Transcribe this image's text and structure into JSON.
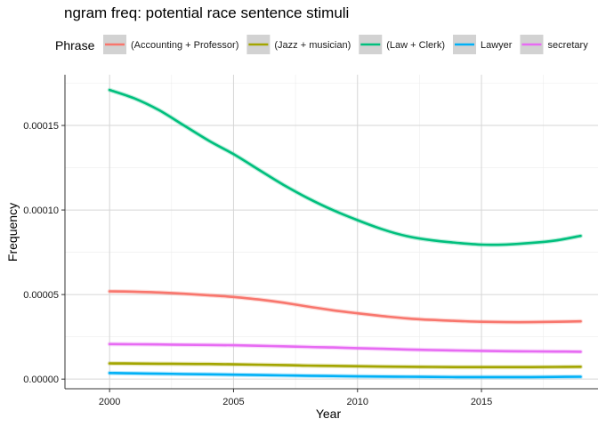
{
  "chart_data": {
    "type": "line",
    "title": "ngram freq: potential race sentence stimuli",
    "xlabel": "Year",
    "ylabel": "Frequency",
    "legend_title": "Phrase",
    "legend_position": "top",
    "grid": true,
    "xlim": [
      1998.2,
      2019.7
    ],
    "ylim": [
      -5.7e-06,
      0.00018
    ],
    "x_ticks": [
      2000,
      2005,
      2010,
      2015
    ],
    "x_tick_labels": [
      "2000",
      "2005",
      "2010",
      "2015"
    ],
    "y_ticks": [
      0,
      5e-05,
      0.0001,
      0.00015
    ],
    "y_tick_labels": [
      "0.00000",
      "0.00005",
      "0.00010",
      "0.00015"
    ],
    "x": [
      2000,
      2001,
      2002,
      2003,
      2004,
      2005,
      2006,
      2007,
      2008,
      2009,
      2010,
      2011,
      2012,
      2013,
      2014,
      2015,
      2016,
      2017,
      2018,
      2019
    ],
    "series": [
      {
        "name": "(Accounting + Professor)",
        "color": "#F8766D",
        "values": [
          5.19e-05,
          5.17e-05,
          5.12e-05,
          5.05e-05,
          4.96e-05,
          4.86e-05,
          4.71e-05,
          4.52e-05,
          4.29e-05,
          4.07e-05,
          3.89e-05,
          3.73e-05,
          3.59e-05,
          3.5e-05,
          3.44e-05,
          3.39e-05,
          3.37e-05,
          3.37e-05,
          3.39e-05,
          3.42e-05
        ]
      },
      {
        "name": "(Jazz + musician)",
        "color": "#A3A500",
        "values": [
          9.3e-06,
          9.2e-06,
          9.1e-06,
          9e-06,
          8.9e-06,
          8.7e-06,
          8.5e-06,
          8.3e-06,
          8e-06,
          7.8e-06,
          7.6e-06,
          7.4e-06,
          7.3e-06,
          7.2e-06,
          7.1e-06,
          7.1e-06,
          7.1e-06,
          7.1e-06,
          7.2e-06,
          7.3e-06
        ]
      },
      {
        "name": "(Law + Clerk)",
        "color": "#00BF7D",
        "values": [
          0.000171,
          0.000166,
          0.000159,
          0.00015,
          0.000141,
          0.000133,
          0.000124,
          0.000115,
          0.000107,
          0.0001,
          9.4e-05,
          8.86e-05,
          8.45e-05,
          8.21e-05,
          8.06e-05,
          7.95e-05,
          7.96e-05,
          8.05e-05,
          8.2e-05,
          8.47e-05
        ]
      },
      {
        "name": "Lawyer",
        "color": "#00B0F6",
        "values": [
          3.6e-06,
          3.4e-06,
          3.2e-06,
          3e-06,
          2.8e-06,
          2.6e-06,
          2.4e-06,
          2.2e-06,
          2e-06,
          1.8e-06,
          1.6e-06,
          1.5e-06,
          1.4e-06,
          1.3e-06,
          1.2e-06,
          1.2e-06,
          1.2e-06,
          1.2e-06,
          1.3e-06,
          1.4e-06
        ]
      },
      {
        "name": "secretary",
        "color": "#E76BF3",
        "values": [
          2.07e-05,
          2.06e-05,
          2.05e-05,
          2.03e-05,
          2.02e-05,
          2e-05,
          1.97e-05,
          1.94e-05,
          1.9e-05,
          1.87e-05,
          1.83e-05,
          1.79e-05,
          1.75e-05,
          1.72e-05,
          1.69e-05,
          1.67e-05,
          1.65e-05,
          1.64e-05,
          1.63e-05,
          1.62e-05
        ]
      }
    ]
  }
}
